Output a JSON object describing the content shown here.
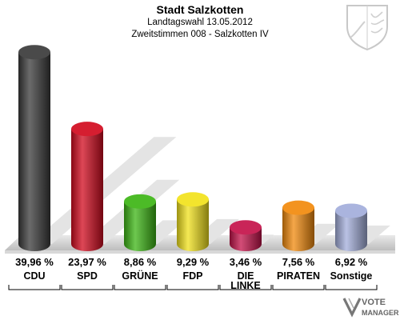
{
  "chart_data": {
    "type": "bar",
    "title": "Stadt Salzkotten",
    "subtitle_lines": [
      "Landtagswahl 13.05.2012",
      "Zweitstimmen 008 - Salzkotten IV"
    ],
    "categories": [
      {
        "label_lines": [
          "CDU"
        ],
        "value": 39.96,
        "value_label": "39,96 %",
        "color": "#3a3a3a"
      },
      {
        "label_lines": [
          "SPD"
        ],
        "value": 23.97,
        "value_label": "23,97 %",
        "color": "#d10a1e"
      },
      {
        "label_lines": [
          "GRÜNE"
        ],
        "value": 8.86,
        "value_label": "8,86 %",
        "color": "#3cb514"
      },
      {
        "label_lines": [
          "FDP"
        ],
        "value": 9.29,
        "value_label": "9,29 %",
        "color": "#f2e21b"
      },
      {
        "label_lines": [
          "DIE",
          "LINKE"
        ],
        "value": 3.46,
        "value_label": "3,46 %",
        "color": "#c4124a"
      },
      {
        "label_lines": [
          "PIRATEN"
        ],
        "value": 7.56,
        "value_label": "7,56 %",
        "color": "#f28a0c"
      },
      {
        "label_lines": [
          "Sonstige"
        ],
        "value": 6.92,
        "value_label": "6,92 %",
        "color": "#a3aedb"
      }
    ],
    "ylim": [
      0,
      40
    ],
    "grid": false,
    "legend": "none"
  },
  "watermark": {
    "line1": "VOTE",
    "line2": "MANAGER"
  }
}
